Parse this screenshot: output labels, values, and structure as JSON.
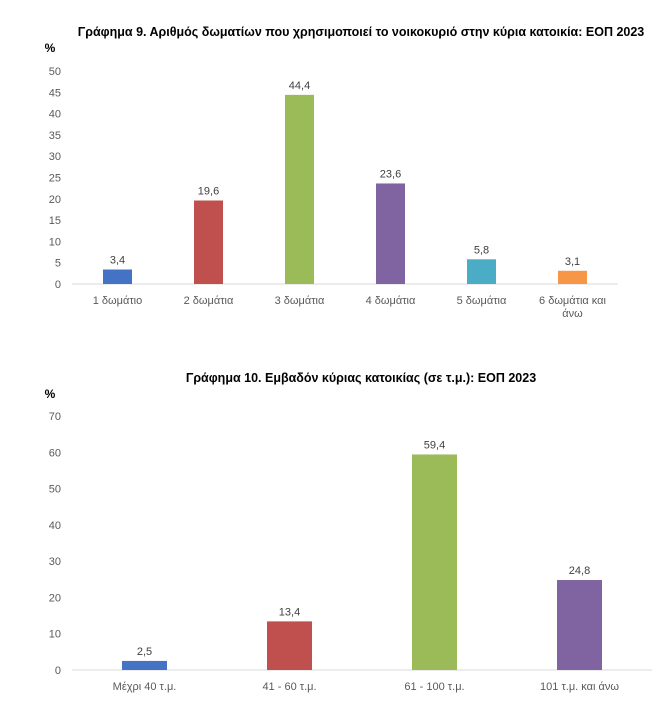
{
  "chart_data": [
    {
      "type": "bar",
      "title": "Γράφημα 9. Αριθμός δωματίων που χρησιμοποιεί το νοικοκυριό στην κύρια κατοικία: ΕΟΠ 2023",
      "ylabel": "%",
      "ylim": [
        0,
        50
      ],
      "yticks": [
        0,
        5,
        10,
        15,
        20,
        25,
        30,
        35,
        40,
        45,
        50
      ],
      "categories": [
        [
          "1 δωμάτιο"
        ],
        [
          "2 δωμάτια"
        ],
        [
          "3 δωμάτια"
        ],
        [
          "4 δωμάτια"
        ],
        [
          "5 δωμάτια"
        ],
        [
          "6 δωμάτια και",
          "άνω"
        ]
      ],
      "values": [
        3.4,
        19.6,
        44.4,
        23.6,
        5.8,
        3.1
      ],
      "value_labels": [
        "3,4",
        "19,6",
        "44,4",
        "23,6",
        "5,8",
        "3,1"
      ],
      "colors": [
        "#4472c4",
        "#c0504d",
        "#9bbb59",
        "#8064a2",
        "#4bacc6",
        "#f79646"
      ],
      "grid": false
    },
    {
      "type": "bar",
      "title": "Γράφημα 10. Εμβαδόν κύριας κατοικίας (σε τ.μ.): ΕΟΠ 2023",
      "ylabel": "%",
      "ylim": [
        0,
        70
      ],
      "yticks": [
        0,
        10,
        20,
        30,
        40,
        50,
        60,
        70
      ],
      "categories": [
        [
          "Μέχρι 40 τ.μ."
        ],
        [
          "41 - 60 τ.μ."
        ],
        [
          "61 - 100 τ.μ."
        ],
        [
          "101 τ.μ. και άνω"
        ]
      ],
      "values": [
        2.5,
        13.4,
        59.4,
        24.8
      ],
      "value_labels": [
        "2,5",
        "13,4",
        "59,4",
        "24,8"
      ],
      "colors": [
        "#4472c4",
        "#c0504d",
        "#9bbb59",
        "#8064a2"
      ],
      "grid": false
    }
  ]
}
